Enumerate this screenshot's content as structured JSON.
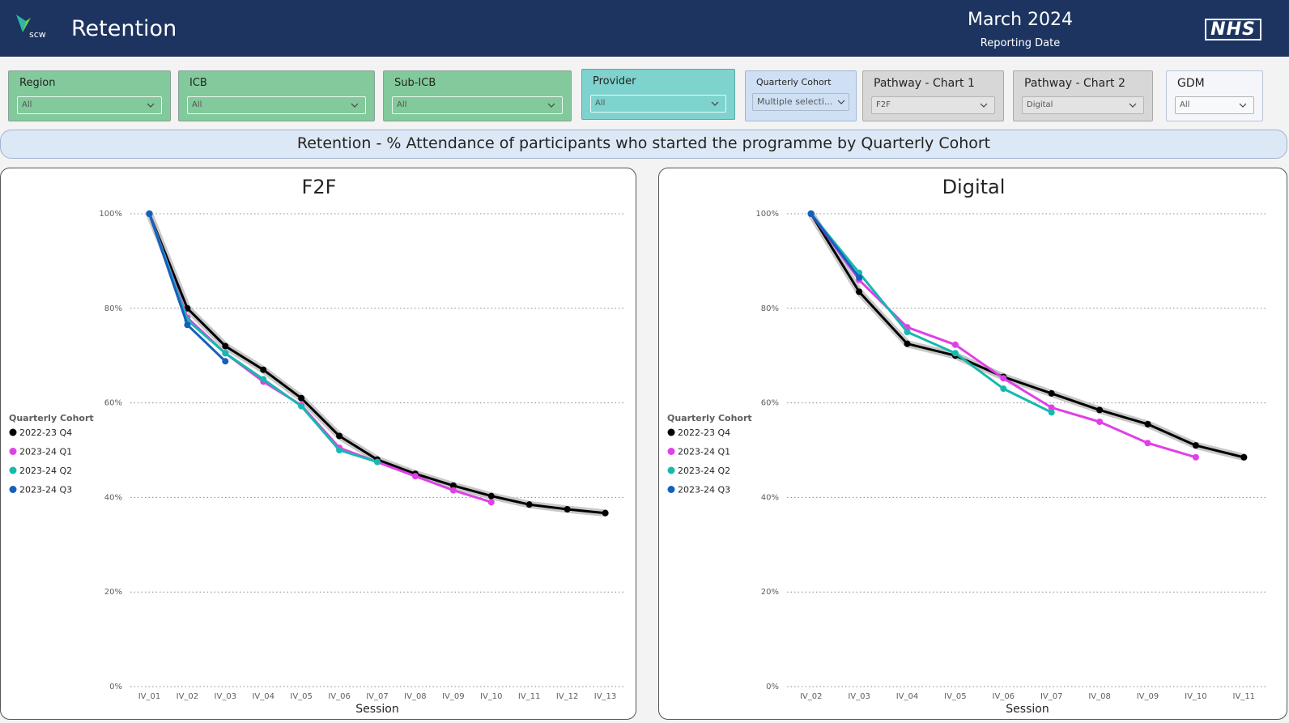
{
  "header": {
    "logo_text": "scw",
    "title": "Retention",
    "reporting_date": "March 2024",
    "reporting_date_label": "Reporting Date",
    "nhs_logo": "NHS"
  },
  "filters": [
    {
      "label": "Region",
      "value": "All"
    },
    {
      "label": "ICB",
      "value": "All"
    },
    {
      "label": "Sub-ICB",
      "value": "All"
    },
    {
      "label": "Provider",
      "value": "All"
    },
    {
      "label": "Quarterly Cohort",
      "value": "Multiple selecti..."
    },
    {
      "label": "Pathway - Chart 1",
      "value": "F2F"
    },
    {
      "label": "Pathway - Chart 2",
      "value": "Digital"
    },
    {
      "label": "GDM",
      "value": "All"
    }
  ],
  "section_title": "Retention - % Attendance of participants who started the programme by Quarterly Cohort",
  "colors": {
    "header_bg": "#1d3460",
    "2022-23 Q4": "#000000",
    "2023-24 Q1": "#e040e8",
    "2023-24 Q2": "#16b9ad",
    "2023-24 Q3": "#1560bd"
  },
  "chart_data": [
    {
      "type": "line",
      "title": "F2F",
      "xlabel": "Session",
      "ylabel": "",
      "ylim": [
        0,
        100
      ],
      "yticks": [
        "0%",
        "20%",
        "40%",
        "60%",
        "80%",
        "100%"
      ],
      "grid": true,
      "legend_title": "Quarterly Cohort",
      "legend_position": "left",
      "categories": [
        "IV_01",
        "IV_02",
        "IV_03",
        "IV_04",
        "IV_05",
        "IV_06",
        "IV_07",
        "IV_08",
        "IV_09",
        "IV_10",
        "IV_11",
        "IV_12",
        "IV_13"
      ],
      "series": [
        {
          "name": "2022-23 Q4",
          "values": [
            100,
            80,
            72,
            67,
            61,
            53,
            48,
            45,
            42.5,
            40.3,
            38.5,
            37.5,
            36.7
          ]
        },
        {
          "name": "2023-24 Q1",
          "values": [
            100,
            78,
            70.5,
            64.5,
            59.5,
            50.5,
            47.5,
            44.5,
            41.5,
            39,
            null,
            null,
            null
          ]
        },
        {
          "name": "2023-24 Q2",
          "values": [
            100,
            77.5,
            70.5,
            65,
            59.3,
            50,
            47.5,
            null,
            null,
            null,
            null,
            null,
            null
          ]
        },
        {
          "name": "2023-24 Q3",
          "values": [
            100,
            76.5,
            68.8,
            null,
            null,
            null,
            null,
            null,
            null,
            null,
            null,
            null,
            null
          ]
        }
      ]
    },
    {
      "type": "line",
      "title": "Digital",
      "xlabel": "Session",
      "ylabel": "",
      "ylim": [
        0,
        100
      ],
      "yticks": [
        "0%",
        "20%",
        "40%",
        "60%",
        "80%",
        "100%"
      ],
      "grid": true,
      "legend_title": "Quarterly Cohort",
      "legend_position": "left",
      "categories": [
        "IV_02",
        "IV_03",
        "IV_04",
        "IV_05",
        "IV_06",
        "IV_07",
        "IV_08",
        "IV_09",
        "IV_10",
        "IV_11"
      ],
      "series": [
        {
          "name": "2022-23 Q4",
          "values": [
            100,
            83.5,
            72.5,
            70,
            65.5,
            62,
            58.5,
            55.5,
            51,
            48.5
          ]
        },
        {
          "name": "2023-24 Q1",
          "values": [
            100,
            86,
            76,
            72.3,
            65.2,
            59,
            56,
            51.5,
            48.5,
            null
          ]
        },
        {
          "name": "2023-24 Q2",
          "values": [
            100,
            87.5,
            75,
            70.5,
            63,
            58,
            null,
            null,
            null,
            null
          ]
        },
        {
          "name": "2023-24 Q3",
          "values": [
            100,
            86.5,
            null,
            null,
            null,
            null,
            null,
            null,
            null,
            null
          ]
        }
      ]
    }
  ]
}
